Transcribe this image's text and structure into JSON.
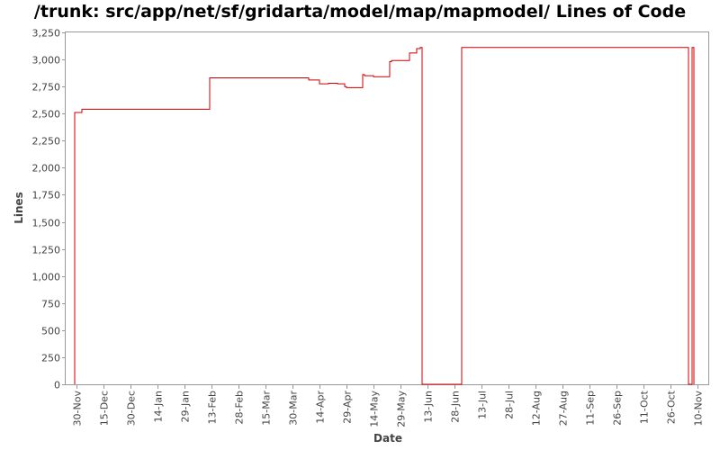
{
  "chart_data": {
    "type": "line",
    "title": "/trunk: src/app/net/sf/gridarta/model/map/mapmodel/ Lines of Code",
    "xlabel": "Date",
    "ylabel": "Lines",
    "ylim": [
      0,
      3250
    ],
    "yticks": [
      0,
      250,
      500,
      750,
      1000,
      1250,
      1500,
      1750,
      2000,
      2250,
      2500,
      2750,
      3000,
      3250
    ],
    "ytick_labels": [
      "0",
      "250",
      "500",
      "750",
      "1,000",
      "1,250",
      "1,500",
      "1,750",
      "2,000",
      "2,250",
      "2,500",
      "2,750",
      "3,000",
      "3,250"
    ],
    "xlim": [
      "2008-11-24",
      "2009-11-16"
    ],
    "xticks": [
      "2008-11-30",
      "2008-12-15",
      "2008-12-30",
      "2009-01-14",
      "2009-01-29",
      "2009-02-13",
      "2009-02-28",
      "2009-03-15",
      "2009-03-30",
      "2009-04-14",
      "2009-04-29",
      "2009-05-14",
      "2009-05-29",
      "2009-06-13",
      "2009-06-28",
      "2009-07-13",
      "2009-07-28",
      "2009-08-12",
      "2009-08-27",
      "2009-09-11",
      "2009-09-26",
      "2009-10-11",
      "2009-10-26",
      "2009-11-10"
    ],
    "xtick_labels": [
      "30-Nov",
      "15-Dec",
      "30-Dec",
      "14-Jan",
      "29-Jan",
      "13-Feb",
      "28-Feb",
      "15-Mar",
      "30-Mar",
      "14-Apr",
      "29-Apr",
      "14-May",
      "29-May",
      "13-Jun",
      "28-Jun",
      "13-Jul",
      "28-Jul",
      "12-Aug",
      "27-Aug",
      "11-Sep",
      "26-Sep",
      "11-Oct",
      "26-Oct",
      "10-Nov"
    ],
    "line_color": "#cc0000",
    "grid": false,
    "series": [
      {
        "x": [
          "2008-11-29",
          "2008-11-29",
          "2008-12-03",
          "2008-12-03",
          "2009-02-12",
          "2009-02-12",
          "2009-04-08",
          "2009-04-08",
          "2009-04-14",
          "2009-04-14",
          "2009-04-19",
          "2009-04-19",
          "2009-04-24",
          "2009-04-24",
          "2009-04-28",
          "2009-04-28",
          "2009-04-29",
          "2009-04-29",
          "2009-05-08",
          "2009-05-08",
          "2009-05-09",
          "2009-05-09",
          "2009-05-14",
          "2009-05-14",
          "2009-05-23",
          "2009-05-23",
          "2009-05-24",
          "2009-05-24",
          "2009-06-03",
          "2009-06-03",
          "2009-06-07",
          "2009-06-07",
          "2009-06-09",
          "2009-06-09",
          "2009-06-10",
          "2009-06-10",
          "2009-07-02",
          "2009-07-02",
          "2009-11-05",
          "2009-11-05",
          "2009-11-07",
          "2009-11-07",
          "2009-11-08",
          "2009-11-08"
        ],
        "y": [
          0,
          2510,
          2510,
          2540,
          2540,
          2830,
          2830,
          2810,
          2810,
          2775,
          2775,
          2780,
          2780,
          2775,
          2775,
          2750,
          2750,
          2740,
          2740,
          2860,
          2860,
          2850,
          2850,
          2840,
          2840,
          2980,
          2980,
          2990,
          2990,
          3060,
          3060,
          3100,
          3100,
          3110,
          3110,
          0,
          0,
          3110,
          3110,
          0,
          0,
          3110,
          3110,
          0
        ]
      }
    ]
  }
}
